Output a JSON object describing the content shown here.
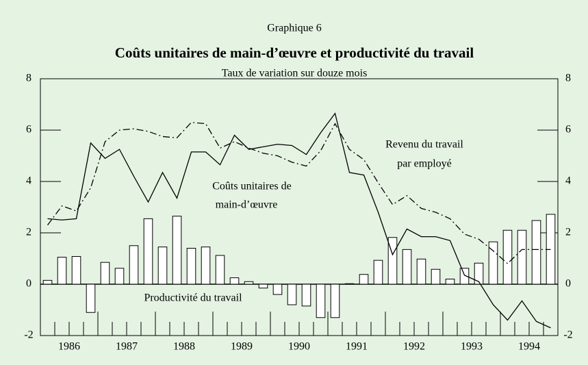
{
  "chart_data": {
    "type": "bar_line",
    "kicker": "Graphique 6",
    "title": "Coûts unitaires de main-d’œuvre et productivité du travail",
    "subtitle": "Taux de variation sur douze mois",
    "x_labels": [
      "1986",
      "1987",
      "1988",
      "1989",
      "1990",
      "1991",
      "1992",
      "1993",
      "1994"
    ],
    "ylim": [
      -2,
      8
    ],
    "yticks": [
      -2,
      0,
      2,
      4,
      6,
      8
    ],
    "y2lim": [
      -2,
      8
    ],
    "y2ticks": [
      -2,
      0,
      2,
      4,
      6,
      8
    ],
    "series": [
      {
        "name": "Productivité du travail",
        "kind": "bar",
        "color": "#ffffff",
        "values": [
          0.15,
          1.05,
          1.08,
          -1.1,
          0.85,
          0.62,
          1.5,
          2.55,
          1.45,
          2.65,
          1.4,
          1.45,
          1.12,
          0.25,
          0.1,
          -0.15,
          -0.4,
          -0.8,
          -0.85,
          -1.3,
          -1.3,
          0.02,
          0.38,
          0.93,
          1.82,
          1.35,
          0.98,
          0.58,
          0.2,
          0.62,
          0.82,
          1.65,
          2.1,
          2.1,
          2.48,
          2.72
        ]
      },
      {
        "name": "Coûts unitaires de main-d’œuvre",
        "kind": "line",
        "dash": "solid",
        "color": "#000000",
        "values": [
          2.55,
          2.5,
          2.55,
          5.5,
          4.9,
          5.25,
          4.2,
          3.2,
          4.35,
          3.35,
          5.15,
          5.15,
          4.65,
          5.8,
          5.25,
          5.35,
          5.45,
          5.4,
          5.05,
          5.9,
          6.65,
          4.35,
          4.25,
          2.8,
          1.15,
          2.15,
          1.85,
          1.85,
          1.7,
          0.35,
          0.1,
          -0.8,
          -1.4,
          -0.65,
          -1.45,
          -1.7
        ]
      },
      {
        "name": "Revenu du travail par employé",
        "kind": "line",
        "dash": "dashdot",
        "color": "#000000",
        "values": [
          2.3,
          3.05,
          2.85,
          3.75,
          5.55,
          6.0,
          6.05,
          5.95,
          5.75,
          5.7,
          6.3,
          6.25,
          5.3,
          5.55,
          5.3,
          5.1,
          5.0,
          4.75,
          4.6,
          5.2,
          6.25,
          5.25,
          4.85,
          3.95,
          3.1,
          3.45,
          2.95,
          2.8,
          2.55,
          1.95,
          1.75,
          1.3,
          0.8,
          1.35,
          1.35,
          1.35
        ]
      }
    ],
    "annotations": [
      "Revenu du travail",
      "par employé",
      "Coûts unitaires de",
      "main-d’œuvre",
      "Productivité du travail"
    ]
  }
}
